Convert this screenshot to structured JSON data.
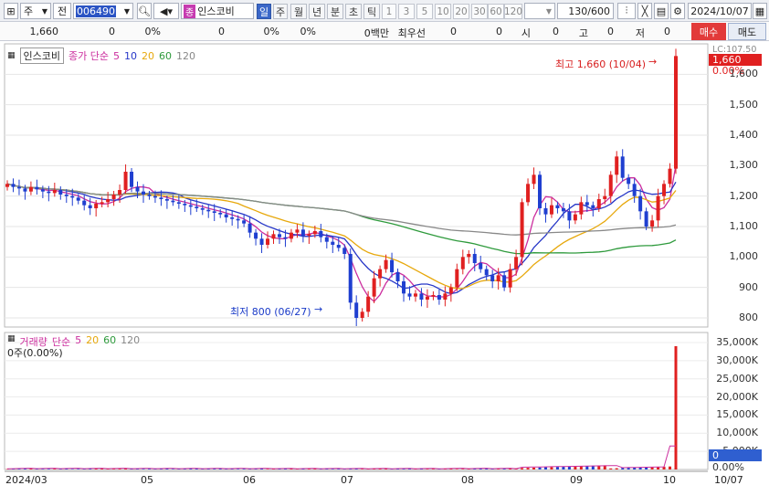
{
  "toolbar": {
    "market": "주",
    "prev_label": "전",
    "code": "006490",
    "name_icon_label": "종",
    "stock_name": "인스코비",
    "periods": [
      "일",
      "주",
      "월",
      "년",
      "분",
      "초",
      "틱"
    ],
    "selected_period": "일",
    "ticks": [
      "1",
      "3",
      "5",
      "10",
      "20",
      "30",
      "60",
      "120"
    ],
    "count": "130",
    "total": "/600",
    "date": "2024/10/07"
  },
  "info": {
    "price": "1,660",
    "change": "0",
    "change_pct": "0%",
    "volume": "0",
    "ratio1": "0%",
    "ratio2": "0%",
    "amount": "0백만",
    "best_bid_label": "최우선",
    "bid": "0",
    "ask": "0",
    "open_label": "시",
    "open": "0",
    "high_label": "고",
    "high": "0",
    "low_label": "저",
    "low": "0",
    "buy_label": "매수",
    "sell_label": "매도"
  },
  "price_panel": {
    "legend_name": "인스코비",
    "legend_type": "종가 단순",
    "ma_labels": [
      "5",
      "10",
      "20",
      "60",
      "120"
    ],
    "ma_colors": [
      "#cc2e9e",
      "#2737c8",
      "#e7a80c",
      "#2e9a3c",
      "#888888"
    ],
    "high_annotation": "최고 1,660 (10/04)",
    "low_annotation": "최저 800 (06/27)",
    "y_top_label": "LC:107.50",
    "current_price_tag": "1,660",
    "current_pct_tag": "0.00%",
    "yticks": [
      "1,600",
      "1,500",
      "1,400",
      "1,300",
      "1,200",
      "1,100",
      "1,000",
      "900",
      "800"
    ]
  },
  "volume_panel": {
    "legend_name": "거래량",
    "legend_type": "단순",
    "ma_labels": [
      "5",
      "20",
      "60",
      "120"
    ],
    "ma_colors": [
      "#cc2e9e",
      "#e7a80c",
      "#2e9a3c",
      "#888888"
    ],
    "current_text": "0주(0.00%)",
    "yticks": [
      "35,000K",
      "30,000K",
      "25,000K",
      "20,000K",
      "15,000K",
      "10,000K",
      "5,000K"
    ],
    "current_tag": "0",
    "pct_tag": "0.00%"
  },
  "x_axis": {
    "labels": [
      "2024/03",
      "05",
      "06",
      "07",
      "08",
      "09",
      "10",
      "10/07"
    ]
  },
  "chart_data": {
    "type": "candlestick",
    "title": "인스코비",
    "y_unit": "원",
    "ylim": [
      770,
      1700
    ],
    "closes": [
      1240,
      1230,
      1225,
      1215,
      1230,
      1222,
      1215,
      1210,
      1220,
      1205,
      1200,
      1195,
      1185,
      1170,
      1160,
      1175,
      1180,
      1190,
      1205,
      1220,
      1280,
      1230,
      1215,
      1205,
      1200,
      1195,
      1190,
      1185,
      1180,
      1175,
      1170,
      1165,
      1160,
      1155,
      1150,
      1145,
      1140,
      1130,
      1125,
      1120,
      1110,
      1080,
      1060,
      1040,
      1060,
      1075,
      1065,
      1060,
      1080,
      1090,
      1070,
      1075,
      1085,
      1065,
      1050,
      1040,
      1030,
      1010,
      850,
      800,
      820,
      870,
      930,
      960,
      990,
      950,
      920,
      880,
      870,
      880,
      860,
      870,
      875,
      860,
      880,
      900,
      960,
      1000,
      1010,
      980,
      960,
      940,
      920,
      940,
      900,
      960,
      1000,
      1180,
      1240,
      1270,
      1160,
      1140,
      1170,
      1160,
      1150,
      1120,
      1140,
      1180,
      1170,
      1160,
      1190,
      1200,
      1270,
      1330,
      1260,
      1240,
      1200,
      1150,
      1100,
      1120,
      1200,
      1240,
      1290,
      1660
    ],
    "volume_spike": {
      "date": "10/04",
      "value_k": 34000
    },
    "y_high": {
      "value": 1660,
      "date": "10/04"
    },
    "y_low": {
      "value": 800,
      "date": "06/27"
    }
  }
}
